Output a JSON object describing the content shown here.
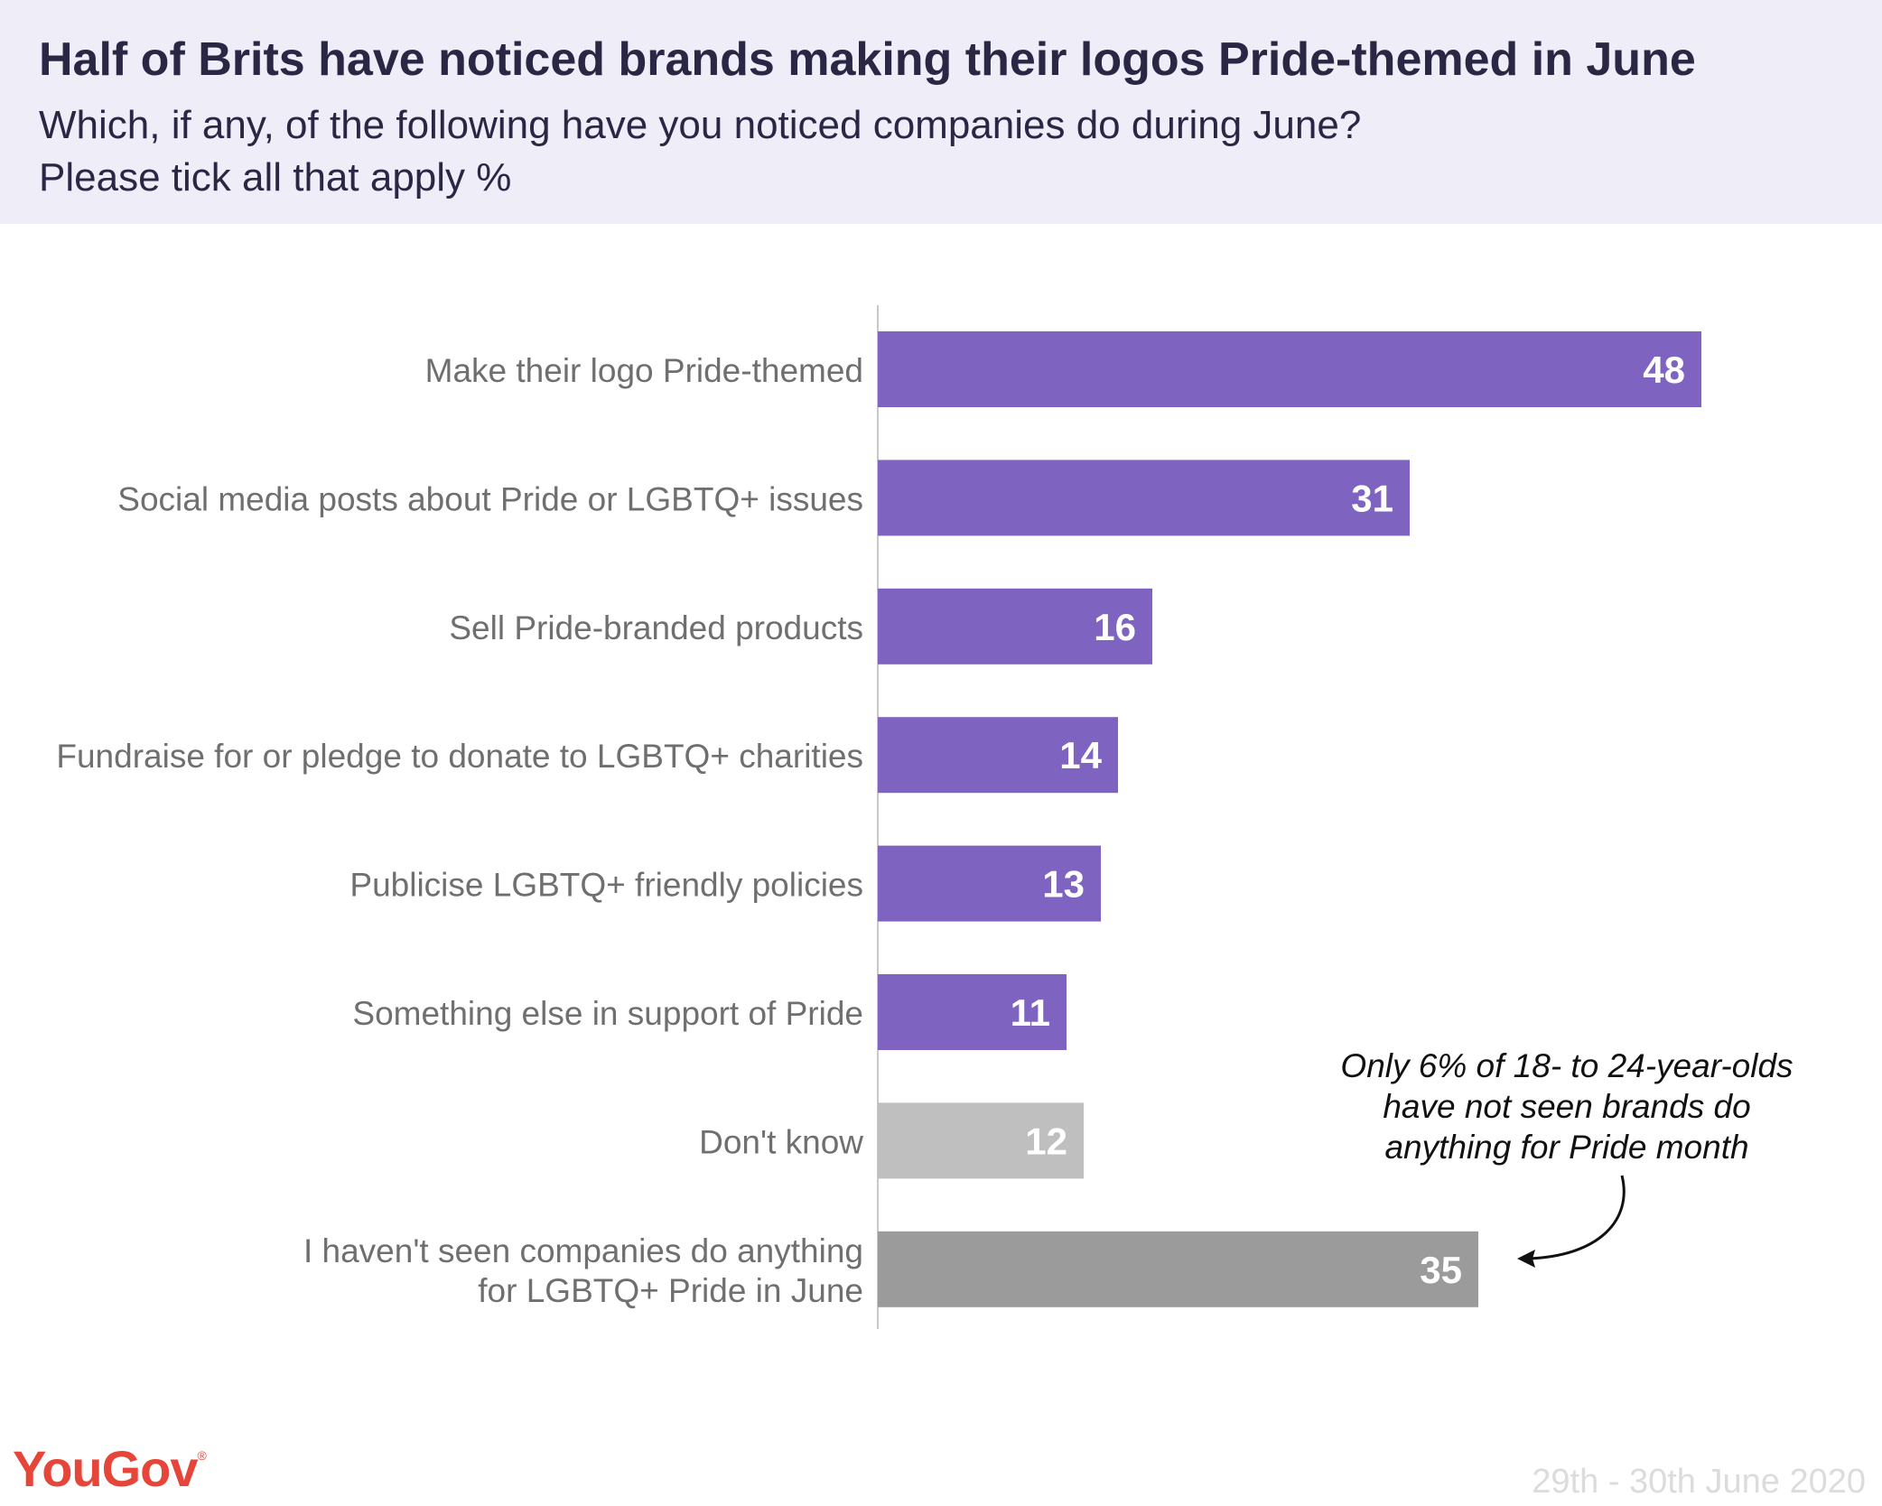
{
  "header": {
    "title": "Half of Brits have noticed brands making their logos Pride-themed in June",
    "subtitle_line1": "Which, if any, of the following have you noticed companies do during June?",
    "subtitle_line2": "Please tick all that apply %"
  },
  "chart_data": {
    "type": "bar",
    "orientation": "horizontal",
    "categories": [
      "Make their logo Pride-themed",
      "Social media posts about Pride or LGBTQ+ issues",
      "Sell Pride-branded products",
      "Fundraise for or pledge to donate to LGBTQ+ charities",
      "Publicise LGBTQ+ friendly policies",
      "Something else in support of Pride",
      "Don't know",
      "I haven't seen companies do anything for LGBTQ+ Pride in June"
    ],
    "category_lines": [
      [
        "Make their logo Pride-themed"
      ],
      [
        "Social media posts about Pride or LGBTQ+ issues"
      ],
      [
        "Sell Pride-branded products"
      ],
      [
        "Fundraise for or pledge to donate to LGBTQ+ charities"
      ],
      [
        "Publicise LGBTQ+ friendly policies"
      ],
      [
        "Something else in support of Pride"
      ],
      [
        "Don't know"
      ],
      [
        "I haven't seen companies do anything",
        "for LGBTQ+ Pride in June"
      ]
    ],
    "values": [
      48,
      31,
      16,
      14,
      13,
      11,
      12,
      35
    ],
    "bar_colors": [
      "#7e64c0",
      "#7e64c0",
      "#7e64c0",
      "#7e64c0",
      "#7e64c0",
      "#7e64c0",
      "#bfbfbf",
      "#9b9b9b"
    ],
    "xlim": [
      0,
      50
    ],
    "annotation": {
      "lines": [
        "Only 6% of 18- to 24-year-olds",
        "have not seen brands do",
        "anything for Pride month"
      ]
    }
  },
  "footer": {
    "logo": "YouGov",
    "date": "29th - 30th June 2020"
  },
  "colors": {
    "accent": "#7e64c0",
    "dont_know": "#bfbfbf",
    "none": "#9b9b9b",
    "header_bg": "#efedf7",
    "logo": "#e6453a"
  }
}
